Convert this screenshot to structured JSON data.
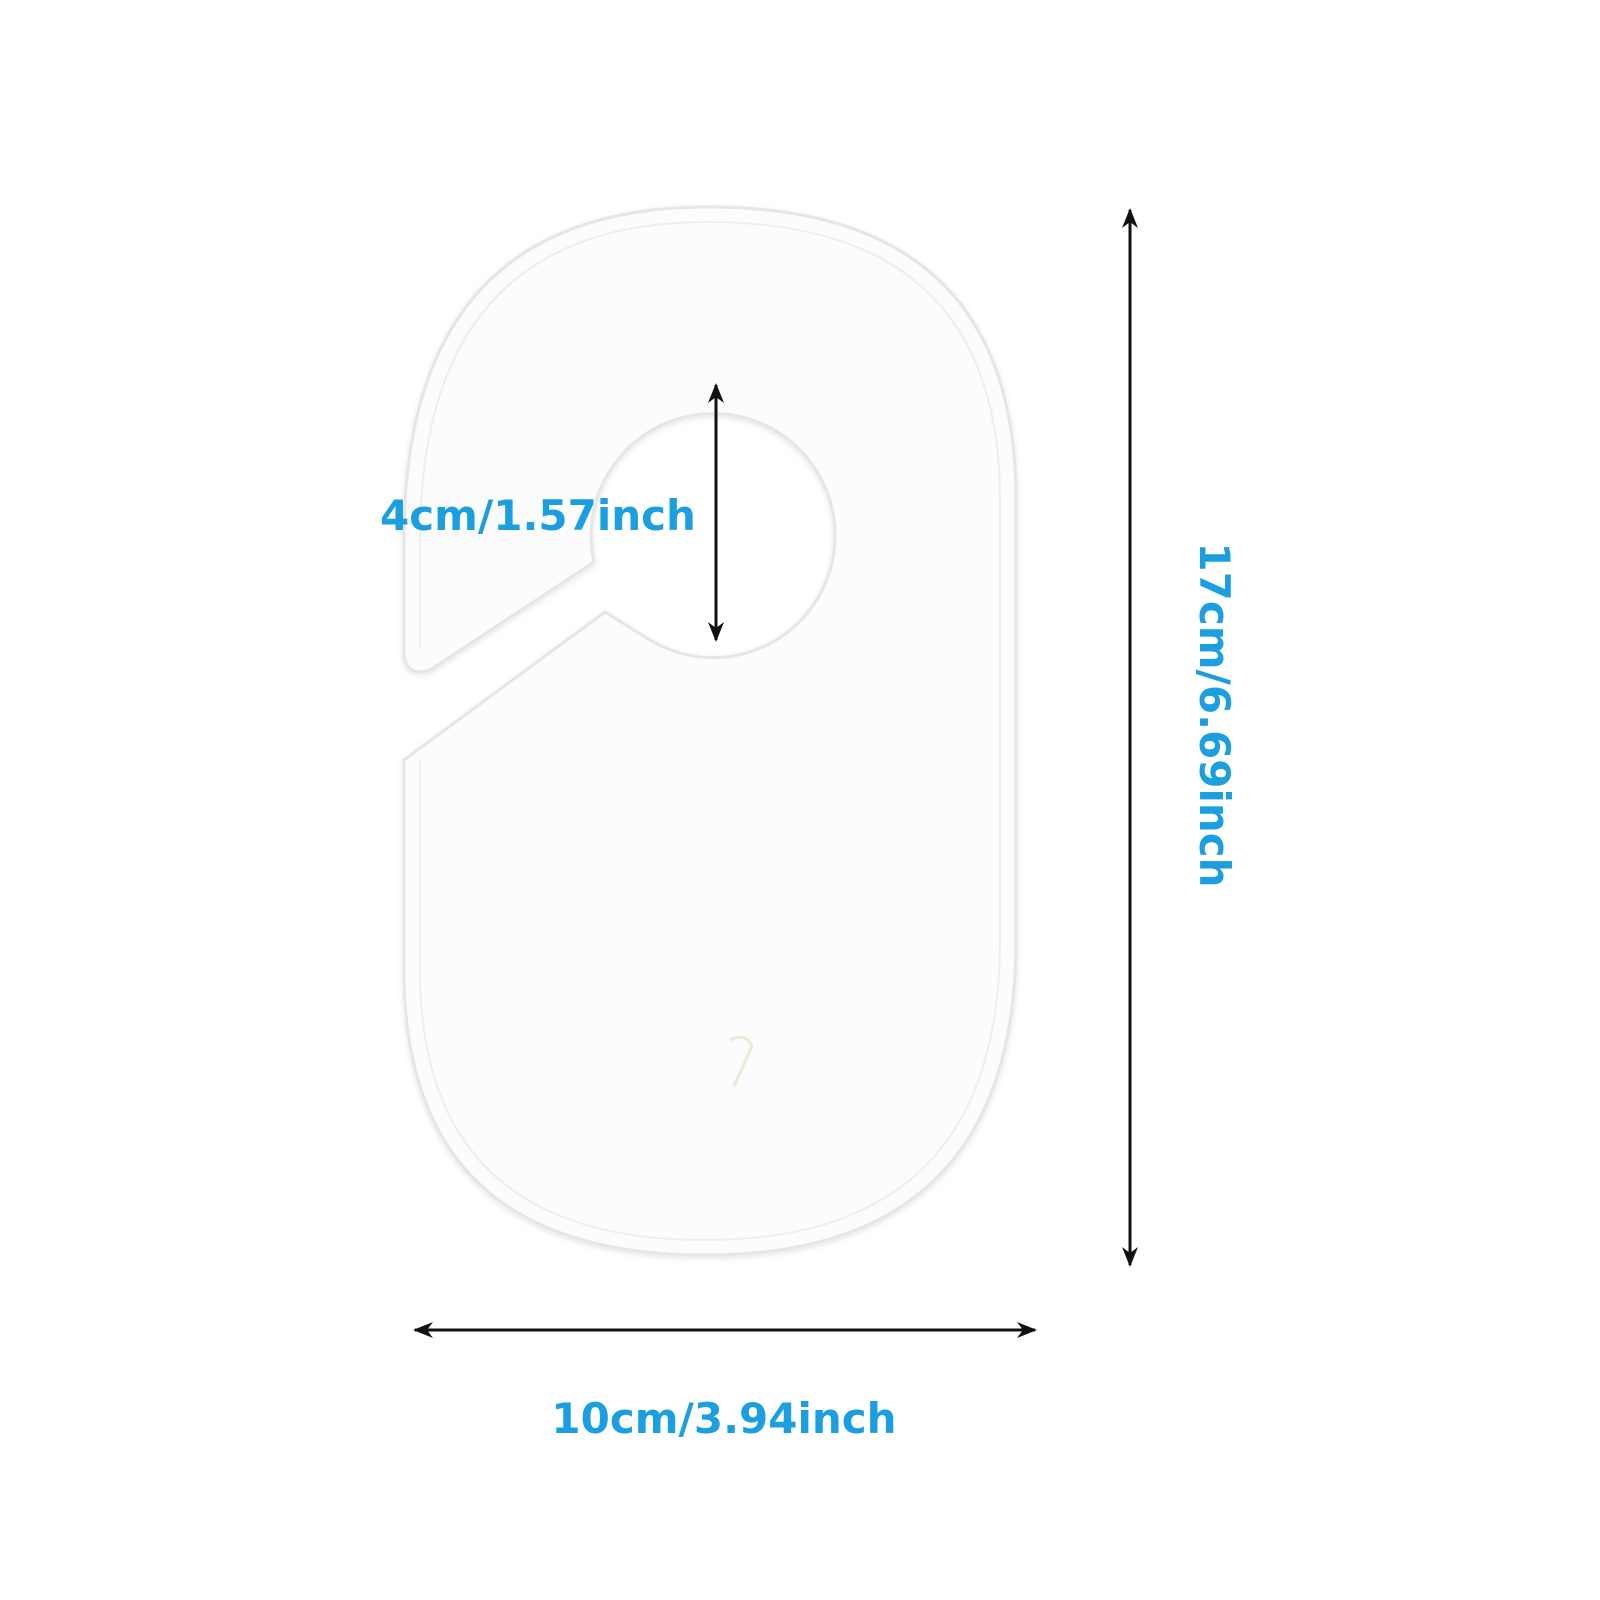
{
  "product": {
    "name_icon": "size-divider-hanger-tag"
  },
  "dimensions": {
    "hole_diameter": "4cm/1.57inch",
    "height": "17cm/6.69inch",
    "width": "10cm/3.94inch"
  },
  "colors": {
    "label": "#1b9fe0",
    "arrow": "#111111",
    "tag_fill": "#fcfcfc",
    "tag_edge": "#e6e6e6"
  }
}
